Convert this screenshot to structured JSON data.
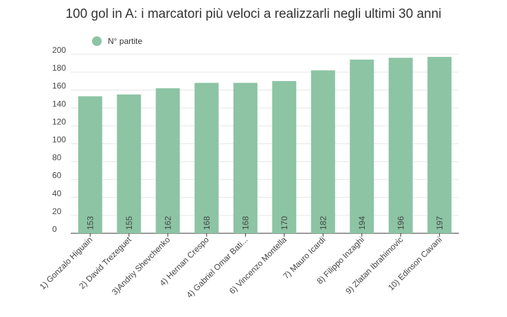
{
  "chart_data": {
    "type": "bar",
    "title": "100 gol in A: i marcatori più veloci a realizzarli negli ultimi 30 anni",
    "xlabel": "",
    "ylabel": "",
    "ylim": [
      0,
      200
    ],
    "yticks": [
      0,
      20,
      40,
      60,
      80,
      100,
      120,
      140,
      160,
      180,
      200
    ],
    "grid": true,
    "legend_position": "top-left",
    "categories": [
      "1) Gonzalo Higuain",
      "2) David Trezeguet",
      "3)Andriy Shevchenko",
      "4) Hernan Crespo",
      "4) Gabriel Omar Bati...",
      "6) Vincenzo Montella",
      "7) Mauro Icardi",
      "8) Filippo Inzaghi",
      "9) Zlatan Ibrahimovic",
      "10) Edinson Cavani"
    ],
    "series": [
      {
        "name": "N° partite",
        "values": [
          153,
          155,
          162,
          168,
          168,
          170,
          182,
          194,
          196,
          197
        ],
        "color": "#8cc4a4"
      }
    ],
    "colors": {
      "grid": "#e6e6e6",
      "axis": "#333333",
      "tick_text": "#444444",
      "label_text": "#444444"
    }
  }
}
